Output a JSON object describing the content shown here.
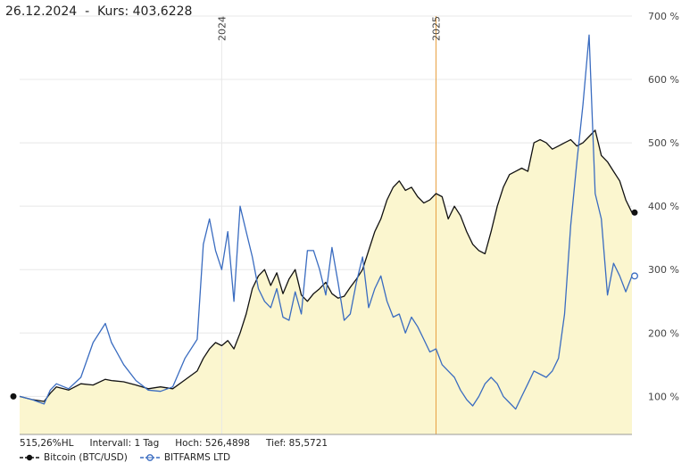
{
  "header": {
    "date": "26.12.2024",
    "separator": "-",
    "kurs_label": "Kurs:",
    "kurs_value": "403,6228"
  },
  "stats": {
    "perf": "515,26%HL",
    "interval": "Intervall: 1 Tag",
    "high": "Hoch: 526,4898",
    "low": "Tief: 85,5721"
  },
  "colors": {
    "bitcoin": "#111111",
    "bitfarms": "#3a6cc0",
    "area": "#fbf6cf",
    "grid": "#e8e8e8",
    "marker": "#e8a040"
  },
  "chart_data": {
    "type": "line",
    "x_labels": [
      "2024",
      "2025"
    ],
    "y_ticks": [
      "100 %",
      "200 %",
      "300 %",
      "400 %",
      "500 %",
      "600 %",
      "700 %"
    ],
    "y_values": [
      100,
      200,
      300,
      400,
      500,
      600,
      700
    ],
    "ylim": [
      40,
      700
    ],
    "x_range": [
      0,
      100
    ],
    "x_label_positions": [
      33,
      68
    ],
    "vertical_marker": 68,
    "series": [
      {
        "name": "Bitcoin (BTC/USD)",
        "color": "#111111",
        "area": true,
        "x": [
          0,
          2,
          4,
          5,
          6,
          8,
          10,
          12,
          14,
          15,
          17,
          19,
          21,
          23,
          25,
          27,
          29,
          30,
          31,
          32,
          33,
          34,
          35,
          36,
          37,
          38,
          39,
          40,
          41,
          42,
          43,
          44,
          45,
          46,
          47,
          48,
          49,
          50,
          51,
          52,
          53,
          54,
          55,
          56,
          57,
          58,
          59,
          60,
          61,
          62,
          63,
          64,
          65,
          66,
          67,
          68,
          69,
          70,
          71,
          72,
          73,
          74,
          75,
          76,
          77,
          78,
          79,
          80,
          81,
          82,
          83,
          84,
          85,
          86,
          87,
          88,
          89,
          90,
          91,
          92,
          93,
          94,
          95,
          96,
          97,
          98,
          99,
          100
        ],
        "y": [
          100,
          95,
          92,
          105,
          115,
          110,
          120,
          118,
          127,
          125,
          123,
          118,
          112,
          115,
          112,
          126,
          140,
          160,
          175,
          185,
          180,
          188,
          175,
          200,
          230,
          270,
          290,
          300,
          275,
          295,
          262,
          285,
          300,
          260,
          250,
          262,
          270,
          280,
          262,
          255,
          258,
          272,
          285,
          300,
          330,
          360,
          380,
          410,
          430,
          440,
          425,
          430,
          415,
          405,
          410,
          420,
          415,
          380,
          400,
          385,
          360,
          340,
          330,
          325,
          360,
          400,
          430,
          450,
          455,
          460,
          455,
          500,
          505,
          500,
          490,
          495,
          500,
          505,
          495,
          500,
          510,
          520,
          480,
          470,
          455,
          440,
          410,
          390
        ]
      },
      {
        "name": "BITFARMS LTD",
        "color": "#3a6cc0",
        "area": false,
        "x": [
          0,
          2,
          4,
          5,
          6,
          8,
          10,
          12,
          14,
          15,
          17,
          19,
          21,
          23,
          25,
          27,
          29,
          30,
          31,
          32,
          33,
          34,
          35,
          36,
          37,
          38,
          39,
          40,
          41,
          42,
          43,
          44,
          45,
          46,
          47,
          48,
          49,
          50,
          51,
          52,
          53,
          54,
          55,
          56,
          57,
          58,
          59,
          60,
          61,
          62,
          63,
          64,
          65,
          66,
          67,
          68,
          69,
          70,
          71,
          72,
          73,
          74,
          75,
          76,
          77,
          78,
          79,
          80,
          81,
          82,
          83,
          84,
          85,
          86,
          87,
          88,
          89,
          90,
          91,
          92,
          93,
          94,
          95,
          96,
          97,
          98,
          99,
          100
        ],
        "y": [
          100,
          95,
          88,
          110,
          120,
          112,
          130,
          185,
          215,
          185,
          150,
          125,
          110,
          108,
          115,
          160,
          190,
          340,
          380,
          330,
          300,
          360,
          250,
          400,
          360,
          320,
          270,
          250,
          240,
          270,
          225,
          220,
          265,
          230,
          330,
          330,
          300,
          260,
          335,
          280,
          220,
          230,
          280,
          320,
          240,
          270,
          290,
          250,
          225,
          230,
          200,
          225,
          210,
          190,
          170,
          175,
          150,
          140,
          130,
          110,
          95,
          85,
          100,
          120,
          130,
          120,
          100,
          90,
          80,
          100,
          120,
          140,
          135,
          130,
          140,
          160,
          230,
          370,
          470,
          560,
          670,
          420,
          380,
          260,
          310,
          290,
          265,
          290
        ]
      }
    ],
    "end_markers": [
      390,
      290
    ]
  },
  "legend": [
    {
      "name": "Bitcoin (BTC/USD)",
      "color": "#111111"
    },
    {
      "name": "BITFARMS LTD",
      "color": "#3a6cc0"
    }
  ]
}
